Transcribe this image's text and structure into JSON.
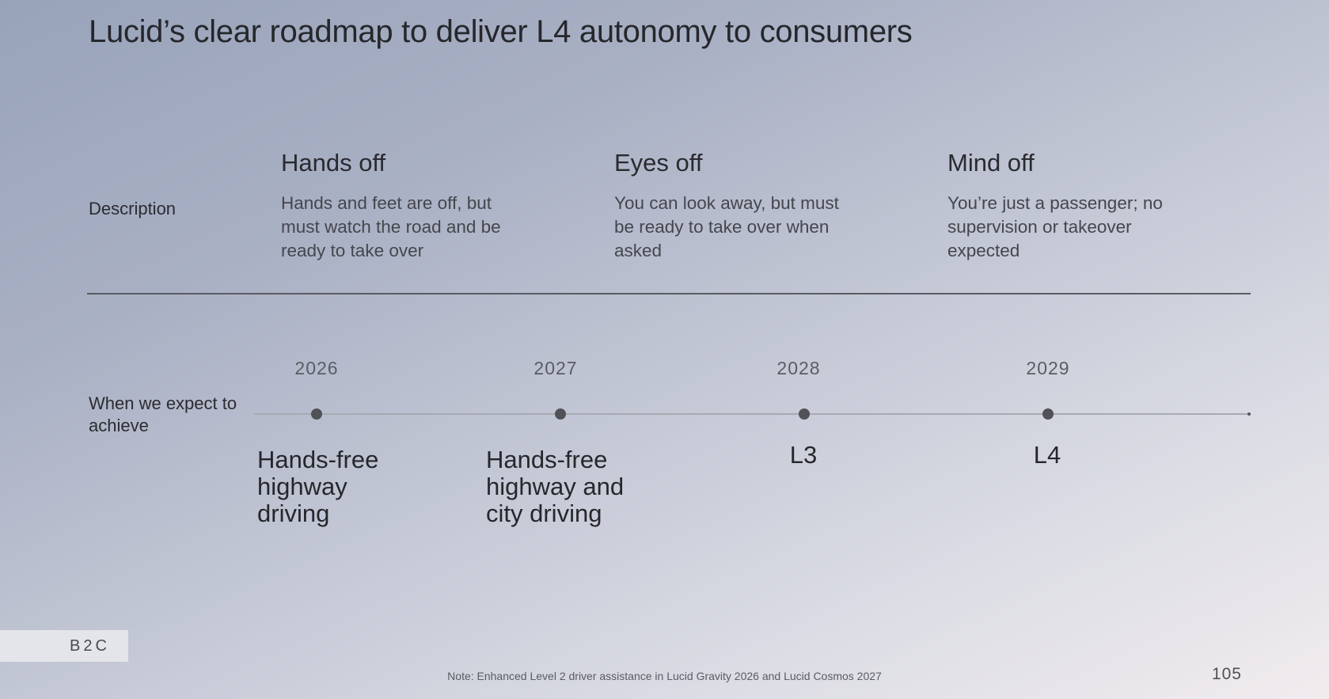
{
  "title": "Lucid’s clear roadmap to deliver L4 autonomy to consumers",
  "rows": {
    "description_label": "Description",
    "timeline_label": "When we expect to achieve"
  },
  "levels": [
    {
      "heading": "Hands off",
      "description": "Hands and feet are off, but must watch the road and be ready to take over"
    },
    {
      "heading": "Eyes off",
      "description": "You can look away, but must be ready to take over when asked"
    },
    {
      "heading": "Mind off",
      "description": "You’re just a passenger; no supervision or takeover expected"
    }
  ],
  "milestones": [
    {
      "year": "2026",
      "label": "Hands-free highway driving"
    },
    {
      "year": "2027",
      "label": "Hands-free highway and city driving"
    },
    {
      "year": "2028",
      "label": "L3"
    },
    {
      "year": "2029",
      "label": "L4"
    }
  ],
  "footer": {
    "tag": "B2C",
    "note": "Note: Enhanced Level 2 driver assistance in Lucid Gravity 2026 and Lucid Cosmos 2027",
    "page_number": "105"
  }
}
